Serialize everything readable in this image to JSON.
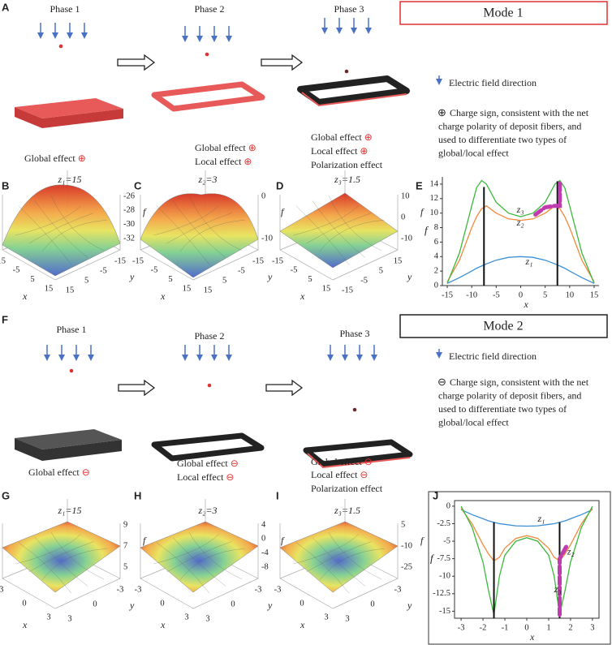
{
  "panel_labels": [
    "A",
    "B",
    "C",
    "D",
    "E",
    "F",
    "G",
    "H",
    "I",
    "J"
  ],
  "modes": [
    {
      "title": "Mode 1",
      "phases": [
        "Phase 1",
        "Phase 2",
        "Phase 3"
      ],
      "captions": [
        [
          {
            "text": "Global effect",
            "sign": "⊕"
          }
        ],
        [
          {
            "text": "Global effect",
            "sign": "⊕"
          },
          {
            "text": "Local effect",
            "sign": "⊕"
          }
        ],
        [
          {
            "text": "Global effect",
            "sign": "⊕"
          },
          {
            "text": "Local effect",
            "sign": "⊕"
          },
          {
            "text": "Polarization effect"
          }
        ]
      ],
      "legend": {
        "field": "Electric field direction",
        "sign": "⊕",
        "charge": [
          "Charge sign, consistent with the net",
          "charge polarity of deposit fibers, and",
          "used to differentiate two types of",
          "global/local effect"
        ]
      },
      "surfaces": [
        {
          "title": "z₁=15",
          "f_label": "f",
          "x_label": "x",
          "y_label": "y",
          "f_ticks": [
            "-26",
            "-28",
            "-30",
            "-32"
          ],
          "x_ticks": [
            "-15",
            "-5",
            "5",
            "15"
          ],
          "y_ticks": [
            "15",
            "5",
            "-5",
            "-15"
          ]
        },
        {
          "title": "z₂=3",
          "f_label": "f",
          "x_label": "x",
          "y_label": "y",
          "f_ticks": [
            "0",
            "-10"
          ],
          "x_ticks": [
            "-15",
            "-5",
            "5",
            "15"
          ],
          "y_ticks": [
            "15",
            "5",
            "-5",
            "-15"
          ]
        },
        {
          "title": "z₃=1.5",
          "f_label": "f",
          "x_label": "x",
          "y_label": "y",
          "f_ticks": [
            "10",
            "0",
            "-10"
          ],
          "x_ticks": [
            "-15",
            "-5",
            "5",
            "15"
          ],
          "y_ticks": [
            "-15",
            "-5",
            "5",
            "15"
          ]
        }
      ]
    },
    {
      "title": "Mode 2",
      "phases": [
        "Phase 1",
        "Phase 2",
        "Phase 3"
      ],
      "captions": [
        [
          {
            "text": "Global effect",
            "sign": "⊖"
          }
        ],
        [
          {
            "text": "Global effect",
            "sign": "⊖"
          },
          {
            "text": "Local effect",
            "sign": "⊖"
          }
        ],
        [
          {
            "text": "Global effect",
            "sign": "⊖"
          },
          {
            "text": "Local effect",
            "sign": "⊖"
          },
          {
            "text": "Polarization effect"
          }
        ]
      ],
      "legend": {
        "field": "Electric field direction",
        "sign": "⊖",
        "charge": [
          "Charge sign, consistent with the net",
          "charge polarity of deposit fibers, and",
          "used to differentiate two types of",
          "global/local effect"
        ]
      },
      "surfaces": [
        {
          "title": "z₁=15",
          "f_label": "f",
          "x_label": "x",
          "y_label": "y",
          "f_ticks": [
            "9",
            "7",
            "5"
          ],
          "x_ticks": [
            "-3",
            "0",
            "3"
          ],
          "y_ticks": [
            "3",
            "0",
            "-3"
          ]
        },
        {
          "title": "z₂=3",
          "f_label": "f",
          "x_label": "x",
          "y_label": "y",
          "f_ticks": [
            "4",
            "0",
            "-4",
            "-8"
          ],
          "x_ticks": [
            "-3",
            "0",
            "3"
          ],
          "y_ticks": [
            "3",
            "0",
            "-3"
          ]
        },
        {
          "title": "z₃=1.5",
          "f_label": "f",
          "x_label": "x",
          "y_label": "y",
          "f_ticks": [
            "5",
            "-10",
            "-25"
          ],
          "x_ticks": [
            "-3",
            "0",
            "3"
          ],
          "y_ticks": [
            "3",
            "0",
            "-3"
          ]
        }
      ]
    }
  ],
  "chart_data": [
    {
      "type": "line",
      "xlabel": "x",
      "ylabel": "f",
      "xlim": [
        -16,
        16
      ],
      "ylim": [
        0,
        15
      ],
      "xticks": [
        -15,
        -10,
        -5,
        0,
        5,
        10,
        15
      ],
      "yticks": [
        0,
        2,
        4,
        6,
        8,
        10,
        12,
        14
      ],
      "x": [
        -15,
        -12.5,
        -10,
        -9,
        -8,
        -7,
        -5,
        -2.5,
        0,
        2.5,
        5,
        7,
        8,
        9,
        10,
        12.5,
        15
      ],
      "series": [
        {
          "name": "z₁",
          "color": "#3a8fd6",
          "values": [
            0.3,
            1.1,
            2.0,
            2.4,
            2.7,
            3.0,
            3.5,
            3.9,
            4.0,
            3.9,
            3.5,
            3.0,
            2.7,
            2.4,
            2.0,
            1.1,
            0.3
          ]
        },
        {
          "name": "z₂",
          "color": "#f08a3c",
          "values": [
            0.5,
            3.5,
            8.0,
            9.5,
            10.6,
            11.0,
            10.0,
            9.2,
            9.0,
            9.2,
            10.0,
            11.0,
            10.6,
            9.5,
            8.0,
            3.5,
            0.5
          ]
        },
        {
          "name": "z₃",
          "color": "#3cb83c",
          "values": [
            0.3,
            4.5,
            11.0,
            13.5,
            14.5,
            14.0,
            11.5,
            10.0,
            9.5,
            10.0,
            11.5,
            14.0,
            14.5,
            13.5,
            11.0,
            4.5,
            0.3
          ]
        }
      ],
      "vlines": {
        "x": [
          -7.5,
          7.5
        ],
        "top": [
          13.6,
          14.4
        ]
      },
      "highlight": {
        "color": "#c13bb0",
        "x": [
          3,
          5,
          7,
          8,
          8
        ],
        "values": [
          9.8,
          10.8,
          11,
          11,
          14.5
        ]
      }
    },
    {
      "type": "line",
      "xlabel": "x",
      "ylabel": "f",
      "xlim": [
        -3.3,
        3.3
      ],
      "ylim": [
        -16,
        0.8
      ],
      "xticks": [
        -3,
        -2,
        -1,
        0,
        1,
        2,
        3
      ],
      "yticks": [
        0,
        -2.5,
        -5,
        -7.5,
        -10,
        -12.5,
        -15
      ],
      "x": [
        -3,
        -2.5,
        -2,
        -1.75,
        -1.5,
        -1.25,
        -1,
        -0.5,
        0,
        0.5,
        1,
        1.25,
        1.5,
        1.75,
        2,
        2.5,
        3
      ],
      "series": [
        {
          "name": "z₁",
          "color": "#3a8fd6",
          "values": [
            -0.5,
            -1.2,
            -1.8,
            -2.1,
            -2.3,
            -2.5,
            -2.6,
            -2.8,
            -2.85,
            -2.8,
            -2.6,
            -2.5,
            -2.3,
            -2.1,
            -1.8,
            -1.2,
            -0.5
          ]
        },
        {
          "name": "z₂",
          "color": "#f08a3c",
          "values": [
            -0.3,
            -2.5,
            -5.5,
            -6.8,
            -7.8,
            -7.3,
            -6.0,
            -4.6,
            -4.2,
            -4.6,
            -6.0,
            -7.3,
            -7.8,
            -6.8,
            -5.5,
            -2.5,
            -0.3
          ]
        },
        {
          "name": "z₃",
          "color": "#3cb83c",
          "values": [
            0,
            -3,
            -8,
            -12,
            -15.5,
            -10,
            -7,
            -5,
            -4.5,
            -5,
            -7,
            -10,
            -15.5,
            -12,
            -8,
            -3,
            0
          ]
        }
      ],
      "vlines": {
        "x": [
          -1.5,
          1.5
        ],
        "top": [
          -2.3,
          -2.3
        ]
      },
      "highlight": {
        "color": "#c13bb0",
        "x": [
          1.8,
          1.5,
          1.5,
          1.5
        ],
        "values": [
          -5.8,
          -7.5,
          -10,
          -15.5
        ]
      }
    }
  ]
}
